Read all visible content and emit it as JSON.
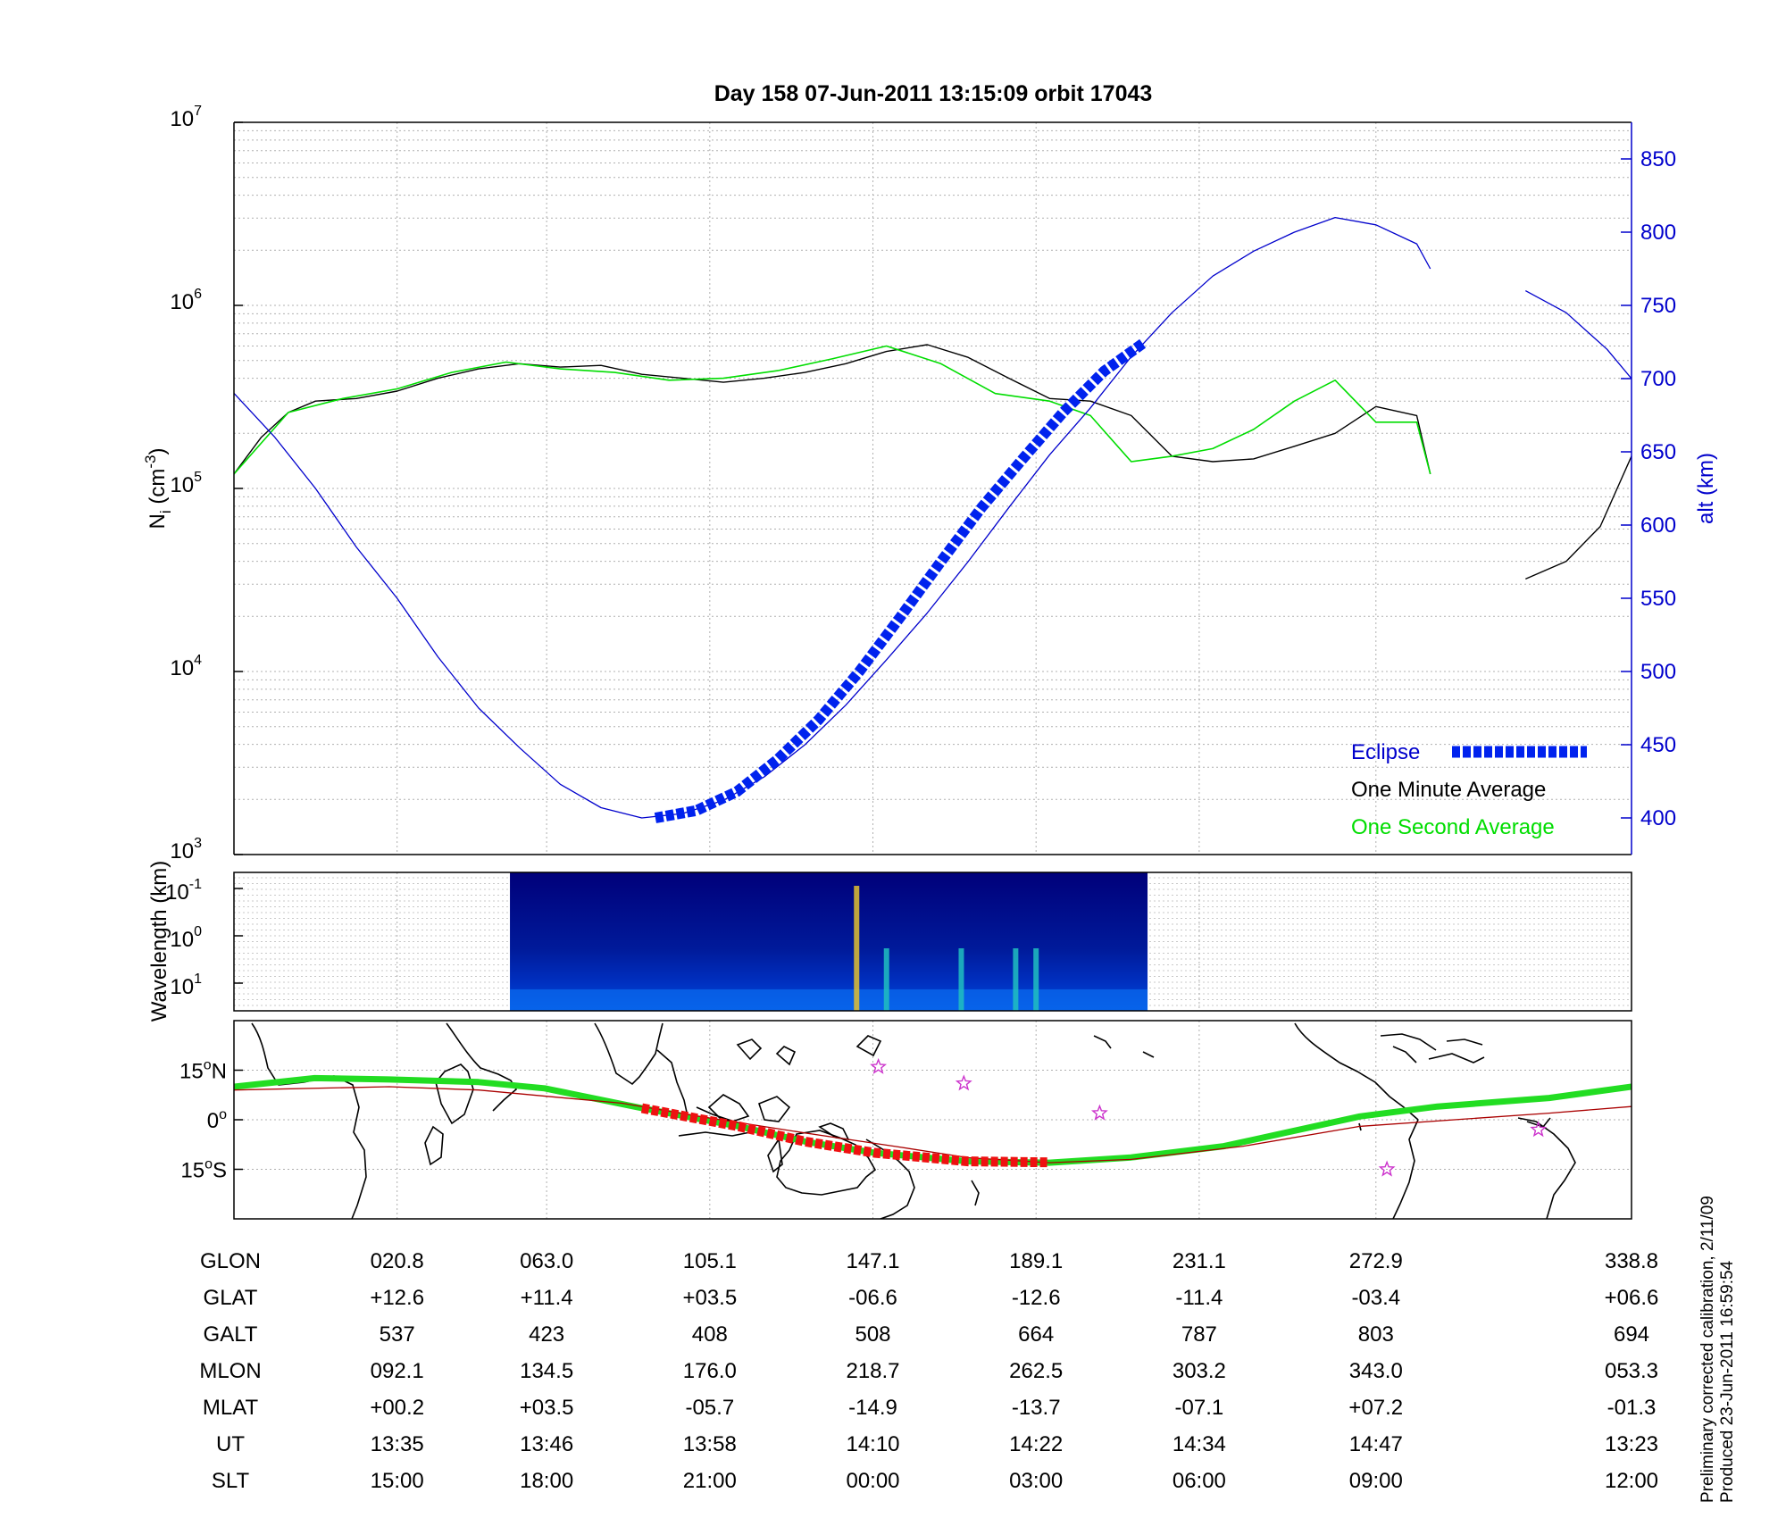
{
  "figure_title": "Day 158  07-Jun-2011 13:15:09   orbit 17043",
  "side_notes": [
    "Preliminary corrected calibration, 2/11/09",
    "Produced 23-Jun-2011 16:59:54"
  ],
  "colors": {
    "eclipse": "#0022ee",
    "one_minute": "#000000",
    "one_second": "#00dd00",
    "altitude": "#0000cc",
    "track": "#22dd22",
    "magnetic_track": "#aa0000",
    "eclipse_track": "#ee1111"
  },
  "chart_data": [
    {
      "type": "line",
      "panel": "density",
      "ylabel": {
        "main": "N",
        "sub": "i",
        "units_pre": " (cm",
        "units_sup": "-3",
        "units_post": ")"
      },
      "y2label": "alt (km)",
      "yscale": "log",
      "ylim": [
        1000,
        10000000
      ],
      "left_ticks": [
        {
          "base": "10",
          "exp": "3",
          "value": 1000
        },
        {
          "base": "10",
          "exp": "4",
          "value": 10000
        },
        {
          "base": "10",
          "exp": "5",
          "value": 100000
        },
        {
          "base": "10",
          "exp": "6",
          "value": 1000000
        },
        {
          "base": "10",
          "exp": "7",
          "value": 10000000
        }
      ],
      "y2lim": [
        375,
        875
      ],
      "right_ticks": [
        "400",
        "450",
        "500",
        "550",
        "600",
        "650",
        "700",
        "750",
        "800",
        "850"
      ],
      "grid": true,
      "legend_position": "bottom-right",
      "legend": {
        "eclipse": "Eclipse",
        "one_minute": "One Minute Average",
        "one_second": "One Second Average"
      },
      "x_unit": "minutes since 13:23 UT",
      "xlim": [
        0,
        102.8
      ],
      "series": [
        {
          "name": "One Minute Average",
          "axis": "left",
          "x": [
            0,
            2,
            4,
            6,
            9,
            12,
            15,
            18,
            21,
            24,
            27,
            30,
            33,
            36,
            39,
            42,
            45,
            48,
            51,
            54,
            57,
            60,
            63,
            66,
            69,
            72,
            75,
            78,
            81,
            84,
            87,
            88
          ],
          "y": [
            120000,
            190000,
            260000,
            300000,
            310000,
            340000,
            400000,
            450000,
            480000,
            460000,
            470000,
            420000,
            400000,
            380000,
            400000,
            430000,
            480000,
            560000,
            610000,
            520000,
            400000,
            310000,
            300000,
            250000,
            150000,
            140000,
            145000,
            170000,
            200000,
            280000,
            250000,
            120000
          ]
        },
        {
          "name": "One Minute Average",
          "axis": "left",
          "x": [
            95,
            98,
            100.5,
            102.8
          ],
          "y": [
            32000,
            40000,
            62000,
            150000
          ]
        },
        {
          "name": "One Second Average",
          "axis": "left",
          "x": [
            0,
            4,
            8,
            12,
            16,
            20,
            24,
            28,
            32,
            36,
            40,
            44,
            48,
            52,
            56,
            60,
            63,
            66,
            69,
            72,
            75,
            78,
            81,
            84,
            87,
            88
          ],
          "y": [
            120000,
            260000,
            310000,
            350000,
            430000,
            490000,
            450000,
            430000,
            390000,
            400000,
            440000,
            510000,
            600000,
            480000,
            330000,
            300000,
            250000,
            140000,
            150000,
            165000,
            210000,
            300000,
            390000,
            230000,
            230000,
            120000
          ]
        },
        {
          "name": "Altitude",
          "axis": "right",
          "x": [
            0,
            3,
            6,
            9,
            12,
            15,
            18,
            21,
            24,
            27,
            30,
            33,
            36,
            39,
            42,
            45,
            48,
            51,
            54,
            57,
            60,
            63,
            66,
            69,
            72,
            75,
            78,
            81,
            84,
            87,
            88
          ],
          "y": [
            690,
            660,
            625,
            585,
            550,
            510,
            475,
            448,
            423,
            407,
            400,
            403,
            412,
            428,
            450,
            477,
            508,
            540,
            575,
            612,
            648,
            680,
            715,
            745,
            770,
            787,
            800,
            810,
            805,
            792,
            775
          ]
        },
        {
          "name": "Altitude",
          "axis": "right",
          "x": [
            95,
            98,
            101,
            102.8
          ],
          "y": [
            760,
            745,
            720,
            700
          ]
        },
        {
          "name": "Eclipse",
          "axis": "right",
          "x": [
            31,
            34,
            37,
            40,
            43,
            46,
            49,
            52,
            55,
            58,
            61,
            64,
            67
          ],
          "y": [
            400,
            405,
            418,
            440,
            467,
            500,
            537,
            575,
            612,
            645,
            677,
            705,
            725
          ]
        }
      ]
    },
    {
      "type": "heatmap",
      "panel": "spectrogram",
      "ylabel": "Wavelength (km)",
      "yscale": "log",
      "y_ticks": [
        {
          "base": "10",
          "exp": "-1",
          "value": 0.1
        },
        {
          "base": "10",
          "exp": "0",
          "value": 1
        },
        {
          "base": "10",
          "exp": "1",
          "value": 10
        }
      ],
      "data_interval_minutes": [
        20.3,
        67.2
      ],
      "bright_features_minutes": [
        45.8,
        48,
        53.5,
        57.5,
        59
      ]
    },
    {
      "type": "line",
      "panel": "map",
      "xlim": [
        0,
        360
      ],
      "ylim": [
        -30,
        30
      ],
      "y_ticks": [
        {
          "text": "15",
          "deg": "o",
          "hemi": "N",
          "value": 15
        },
        {
          "text": "0",
          "deg": "o",
          "hemi": "",
          "value": 0
        },
        {
          "text": "15",
          "deg": "o",
          "hemi": "S",
          "value": -15
        }
      ],
      "series": [
        {
          "name": "Geographic track",
          "lon": [
            0,
            20.8,
            40,
            63,
            80,
            105.1,
            130,
            147.1,
            165,
            189.1,
            210,
            231.1,
            255,
            272.9,
            290,
            310,
            338.8,
            360
          ],
          "lat": [
            10,
            12.6,
            12.2,
            11.4,
            9.5,
            3.5,
            -2,
            -6.6,
            -10,
            -12.6,
            -13,
            -11.4,
            -8,
            -3.4,
            1,
            4,
            6.6,
            10
          ]
        },
        {
          "name": "Magnetic equator",
          "lon": [
            0,
            40,
            63,
            100,
            120,
            147.1,
            170,
            189.1,
            210,
            231.1,
            260,
            290,
            338.8,
            360
          ],
          "lat": [
            9,
            10,
            9,
            5,
            1,
            -4,
            -8,
            -11.5,
            -13,
            -12,
            -8,
            -2,
            2,
            4
          ]
        },
        {
          "name": "Eclipse track",
          "lon": [
            105.1,
            130,
            147.1,
            165,
            189.1,
            210
          ],
          "lat": [
            3.5,
            -2,
            -6.6,
            -10,
            -12.6,
            -12.9
          ]
        }
      ],
      "stars": [
        {
          "lon": 166,
          "lat": 16
        },
        {
          "lon": 188,
          "lat": 11
        },
        {
          "lon": 223,
          "lat": 2
        },
        {
          "lon": 297,
          "lat": -15
        },
        {
          "lon": 336,
          "lat": -3
        }
      ]
    }
  ],
  "ephemeris_table": {
    "columns": [
      "020.8",
      "063.0",
      "105.1",
      "147.1",
      "189.1",
      "231.1",
      "272.9",
      "338.8"
    ],
    "rows": [
      {
        "label": "GLON",
        "values": [
          "020.8",
          "063.0",
          "105.1",
          "147.1",
          "189.1",
          "231.1",
          "272.9",
          "338.8"
        ]
      },
      {
        "label": "GLAT",
        "values": [
          "+12.6",
          "+11.4",
          "+03.5",
          "-06.6",
          "-12.6",
          "-11.4",
          "-03.4",
          "+06.6"
        ]
      },
      {
        "label": "GALT",
        "values": [
          "537",
          "423",
          "408",
          "508",
          "664",
          "787",
          "803",
          "694"
        ]
      },
      {
        "label": "MLON",
        "values": [
          "092.1",
          "134.5",
          "176.0",
          "218.7",
          "262.5",
          "303.2",
          "343.0",
          "053.3"
        ]
      },
      {
        "label": "MLAT",
        "values": [
          "+00.2",
          "+03.5",
          "-05.7",
          "-14.9",
          "-13.7",
          "-07.1",
          "+07.2",
          "-01.3"
        ]
      },
      {
        "label": "UT",
        "values": [
          "13:35",
          "13:46",
          "13:58",
          "14:10",
          "14:22",
          "14:34",
          "14:47",
          "13:23"
        ]
      },
      {
        "label": "SLT",
        "values": [
          "15:00",
          "18:00",
          "21:00",
          "00:00",
          "03:00",
          "06:00",
          "09:00",
          "12:00"
        ]
      }
    ]
  }
}
